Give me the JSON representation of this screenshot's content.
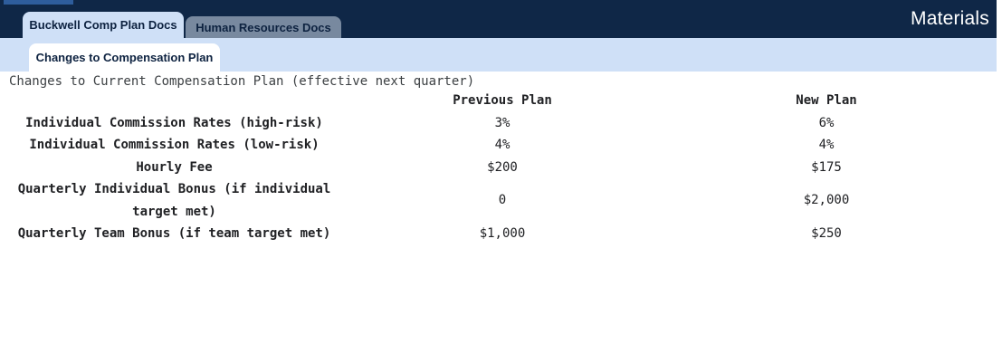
{
  "app": {
    "title": "Materials",
    "tabs": [
      {
        "label": "Buckwell Comp Plan Docs",
        "active": true
      },
      {
        "label": "Human Resources Docs",
        "active": false
      }
    ],
    "subtab": "Changes to Compensation Plan"
  },
  "document": {
    "title": "Changes to Current Compensation Plan (effective next quarter)",
    "table": {
      "columns": [
        "",
        "Previous Plan",
        "New Plan"
      ],
      "rows": [
        {
          "label": "Individual Commission Rates (high-risk)",
          "previous_plan": "3%",
          "new_plan": "6%"
        },
        {
          "label": "Individual Commission Rates (low-risk)",
          "previous_plan": "4%",
          "new_plan": "4%"
        },
        {
          "label": "Hourly Fee",
          "previous_plan": "$200",
          "new_plan": "$175"
        },
        {
          "label": "Quarterly Individual Bonus (if individual target met)",
          "previous_plan": "0",
          "new_plan": "$2,000"
        },
        {
          "label": "Quarterly Team Bonus (if team target met)",
          "previous_plan": "$1,000",
          "new_plan": "$250"
        }
      ]
    }
  },
  "colors": {
    "header_navy": "#0f2747",
    "active_tab_blue": "#cfe0f7",
    "inactive_tab_slate": "#78899f",
    "accent_bar_blue": "#2e5d9c",
    "table_text": "#202124",
    "doc_title_text": "#3c4043"
  }
}
